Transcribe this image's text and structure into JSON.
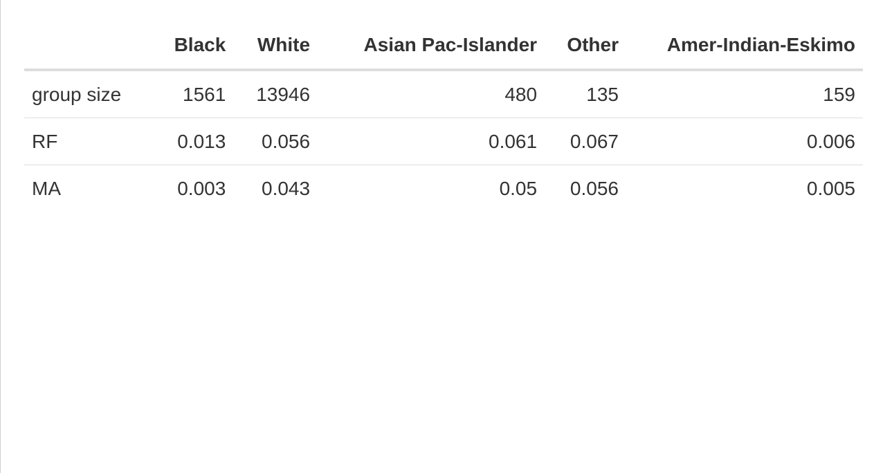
{
  "table": {
    "corner": "",
    "columns": [
      "Black",
      "White",
      "Asian Pac-Islander",
      "Other",
      "Amer-Indian-Eskimo"
    ],
    "rows": [
      {
        "label": "group size",
        "values": [
          "1561",
          "13946",
          "480",
          "135",
          "159"
        ]
      },
      {
        "label": "RF",
        "values": [
          "0.013",
          "0.056",
          "0.061",
          "0.067",
          "0.006"
        ]
      },
      {
        "label": "MA",
        "values": [
          "0.003",
          "0.043",
          "0.05",
          "0.056",
          "0.005"
        ]
      }
    ]
  }
}
